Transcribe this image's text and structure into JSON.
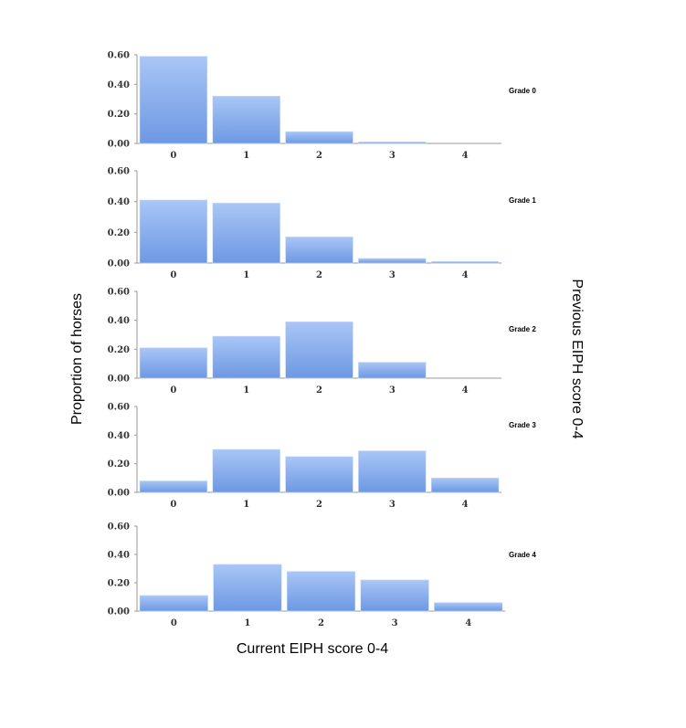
{
  "chart_data": {
    "type": "bar",
    "xlabel": "Current EIPH score 0-4",
    "ylabel": "Proportion of horses",
    "right_label": "Previous EIPH score 0-4",
    "categories": [
      "0",
      "1",
      "2",
      "3",
      "4"
    ],
    "yticks": [
      "0.00",
      "0.20",
      "0.40",
      "0.60"
    ],
    "ylim": [
      0,
      0.6
    ],
    "grid": false,
    "bar_color": "#7fa8ea",
    "panels": [
      {
        "name": "Grade 0",
        "values": [
          0.59,
          0.32,
          0.08,
          0.01,
          0.0
        ]
      },
      {
        "name": "Grade 1",
        "values": [
          0.41,
          0.39,
          0.17,
          0.03,
          0.01
        ]
      },
      {
        "name": "Grade 2",
        "values": [
          0.21,
          0.29,
          0.39,
          0.11,
          0.0
        ]
      },
      {
        "name": "Grade 3",
        "values": [
          0.08,
          0.3,
          0.25,
          0.29,
          0.1
        ]
      },
      {
        "name": "Grade 4",
        "values": [
          0.11,
          0.33,
          0.28,
          0.22,
          0.06
        ]
      }
    ]
  }
}
